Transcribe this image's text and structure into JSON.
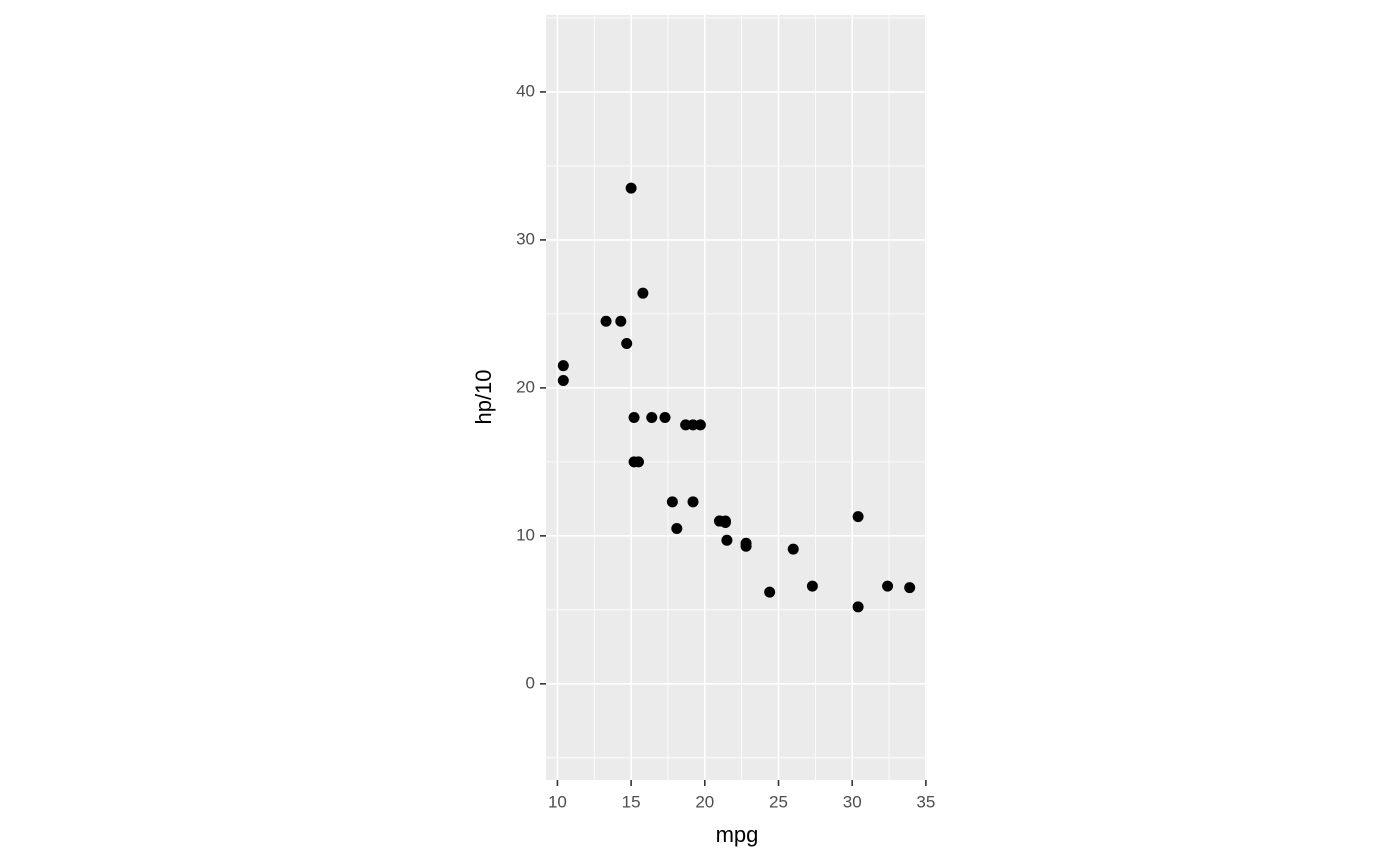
{
  "chart_data": {
    "type": "scatter",
    "x_label": "mpg",
    "y_label": "hp/10",
    "x": [
      21,
      21,
      22.8,
      21.4,
      18.7,
      18.1,
      14.3,
      24.4,
      22.8,
      19.2,
      17.8,
      16.4,
      17.3,
      15.2,
      10.4,
      10.4,
      14.7,
      32.4,
      30.4,
      33.9,
      21.5,
      15.5,
      15.2,
      13.3,
      19.2,
      27.3,
      26.0,
      30.4,
      15.8,
      19.7,
      15.0,
      21.4
    ],
    "values": [
      11.0,
      11.0,
      9.3,
      11.0,
      17.5,
      10.5,
      24.5,
      6.2,
      9.5,
      12.3,
      12.3,
      18.0,
      18.0,
      18.0,
      20.5,
      21.5,
      23.0,
      6.6,
      5.2,
      6.5,
      9.7,
      15.0,
      15.0,
      24.5,
      17.5,
      6.6,
      9.1,
      11.3,
      26.4,
      17.5,
      33.5,
      10.9
    ],
    "color": "#000000",
    "xlim": [
      9.225,
      35.075
    ],
    "xticks": [
      10,
      15,
      20,
      25,
      30,
      35
    ],
    "ylim": [
      -6.5,
      45.2
    ],
    "yticks": [
      0,
      10,
      20,
      30,
      40
    ],
    "grid": true
  }
}
